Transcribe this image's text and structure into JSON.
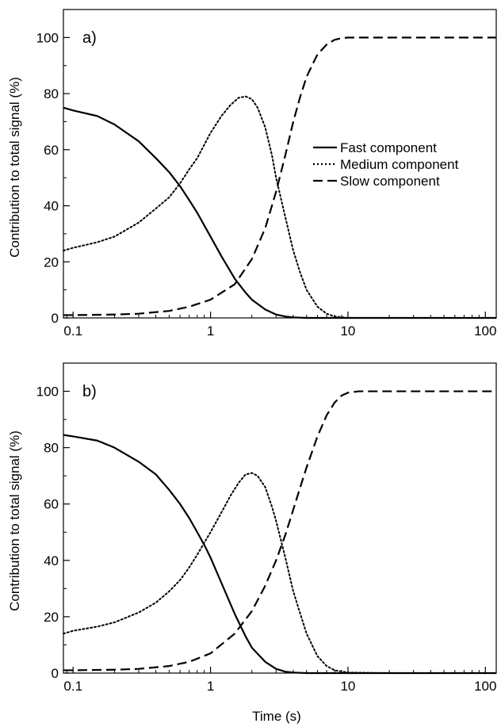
{
  "figure": {
    "xlabel": "Time (s)",
    "ylabel": "Contribution to total signal (%)"
  },
  "legend": [
    {
      "label": "Fast component",
      "style": "solid"
    },
    {
      "label": "Medium component",
      "style": "dotted"
    },
    {
      "label": "Slow component",
      "style": "dashed"
    }
  ],
  "chart_data": [
    {
      "type": "line",
      "panel_label": "a)",
      "xscale": "log",
      "xlim": [
        0.085,
        120
      ],
      "ylim": [
        0,
        110
      ],
      "xticks": [
        {
          "value": 0.1,
          "label": "0.1"
        },
        {
          "value": 1,
          "label": "1"
        },
        {
          "value": 10,
          "label": "10"
        },
        {
          "value": 100,
          "label": "100"
        }
      ],
      "yticks": [
        0,
        20,
        40,
        60,
        80,
        100
      ],
      "legend_placement": "center-right",
      "series": [
        {
          "name": "Fast component",
          "style": "solid",
          "x": [
            0.085,
            0.1,
            0.15,
            0.2,
            0.3,
            0.4,
            0.5,
            0.6,
            0.7,
            0.8,
            0.9,
            1.0,
            1.2,
            1.5,
            1.8,
            2.0,
            2.5,
            3.0,
            3.5,
            4.0,
            5.0,
            7.0,
            10,
            20,
            50,
            120
          ],
          "y": [
            75,
            74,
            72,
            69,
            63,
            57,
            52,
            47,
            42,
            37.5,
            33,
            29,
            22,
            14,
            9,
            6.5,
            3,
            1.2,
            0.5,
            0.2,
            0,
            0,
            0,
            0,
            0,
            0
          ]
        },
        {
          "name": "Medium component",
          "style": "dotted",
          "x": [
            0.085,
            0.1,
            0.15,
            0.2,
            0.3,
            0.4,
            0.5,
            0.6,
            0.7,
            0.8,
            1.0,
            1.2,
            1.4,
            1.6,
            1.8,
            2.0,
            2.2,
            2.5,
            2.8,
            3.0,
            3.5,
            4.0,
            4.5,
            5.0,
            6.0,
            7.0,
            8.0,
            10,
            20,
            50,
            120
          ],
          "y": [
            24,
            25,
            27,
            29,
            34,
            39,
            43,
            48,
            53,
            57,
            66,
            72,
            76,
            78.5,
            79,
            78,
            75,
            68,
            58,
            50,
            36,
            24,
            16,
            10,
            4,
            1.5,
            0.5,
            0,
            0,
            0,
            0
          ]
        },
        {
          "name": "Slow component",
          "style": "dashed",
          "x": [
            0.085,
            0.1,
            0.2,
            0.3,
            0.5,
            0.7,
            1.0,
            1.5,
            2.0,
            2.5,
            3.0,
            3.5,
            4.0,
            4.5,
            5.0,
            6.0,
            7.0,
            8.0,
            9.0,
            10,
            12,
            20,
            50,
            120
          ],
          "y": [
            1,
            1,
            1.2,
            1.5,
            2.5,
            4,
            6.5,
            12,
            21,
            32,
            45,
            58,
            70,
            79,
            86,
            94,
            97.5,
            99.2,
            99.8,
            100,
            100,
            100,
            100,
            100
          ]
        }
      ]
    },
    {
      "type": "line",
      "panel_label": "b)",
      "xscale": "log",
      "xlim": [
        0.085,
        120
      ],
      "ylim": [
        0,
        110
      ],
      "xticks": [
        {
          "value": 0.1,
          "label": "0.1"
        },
        {
          "value": 1,
          "label": "1"
        },
        {
          "value": 10,
          "label": "10"
        },
        {
          "value": 100,
          "label": "100"
        }
      ],
      "yticks": [
        0,
        20,
        40,
        60,
        80,
        100
      ],
      "series": [
        {
          "name": "Fast component",
          "style": "solid",
          "x": [
            0.085,
            0.1,
            0.15,
            0.2,
            0.3,
            0.4,
            0.5,
            0.6,
            0.7,
            0.8,
            0.9,
            1.0,
            1.2,
            1.5,
            1.8,
            2.0,
            2.5,
            3.0,
            3.5,
            4.0,
            5.0,
            7.0,
            10,
            20,
            50,
            120
          ],
          "y": [
            84.5,
            84,
            82.5,
            80,
            75,
            70.5,
            65,
            60,
            55,
            50,
            45.5,
            41,
            32,
            21,
            13,
            9,
            4,
            1.5,
            0.5,
            0.2,
            0,
            0,
            0,
            0,
            0,
            0
          ]
        },
        {
          "name": "Medium component",
          "style": "dotted",
          "x": [
            0.085,
            0.1,
            0.15,
            0.2,
            0.3,
            0.4,
            0.5,
            0.6,
            0.7,
            0.8,
            1.0,
            1.2,
            1.4,
            1.6,
            1.8,
            2.0,
            2.2,
            2.5,
            2.8,
            3.0,
            3.5,
            4.0,
            4.5,
            5.0,
            6.0,
            7.0,
            8.0,
            10,
            20,
            50,
            120
          ],
          "y": [
            14,
            15,
            16.5,
            18,
            21.5,
            25,
            29,
            33,
            37.5,
            42,
            50,
            57,
            63,
            67.5,
            70.5,
            71,
            70,
            66,
            59,
            54,
            41,
            29,
            21,
            14,
            6,
            2.5,
            1,
            0.2,
            0,
            0,
            0
          ]
        },
        {
          "name": "Slow component",
          "style": "dashed",
          "x": [
            0.085,
            0.1,
            0.2,
            0.3,
            0.5,
            0.7,
            1.0,
            1.5,
            2.0,
            2.5,
            3.0,
            3.5,
            4.0,
            4.5,
            5.0,
            6.0,
            7.0,
            8.0,
            9.0,
            10,
            12,
            20,
            50,
            120
          ],
          "y": [
            1,
            1,
            1.2,
            1.5,
            2.5,
            4,
            7,
            14,
            22,
            31,
            40,
            49,
            58,
            66,
            73,
            84,
            91.5,
            96,
            98.5,
            99.5,
            100,
            100,
            100,
            100
          ]
        }
      ]
    }
  ]
}
